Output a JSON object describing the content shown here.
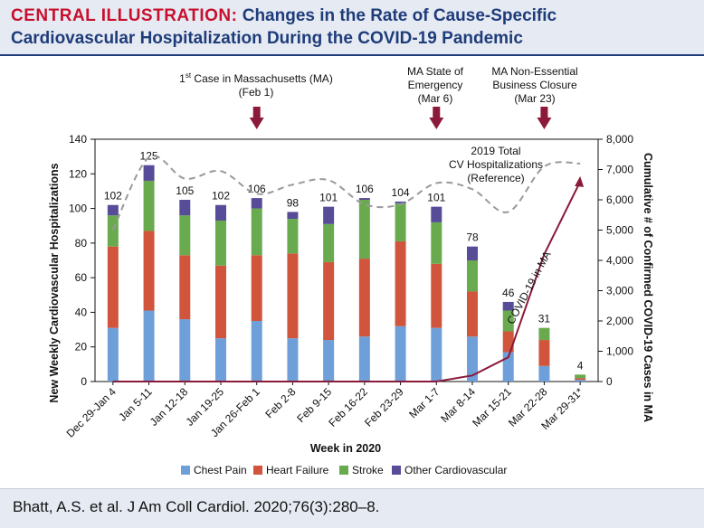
{
  "header": {
    "prefix": "CENTRAL ILLUSTRATION:",
    "title_line1": "Changes in the Rate of Cause-Specific",
    "title_line2": "Cardiovascular Hospitalization During the COVID-19 Pandemic"
  },
  "footer": {
    "citation": "Bhatt, A.S. et al. J Am Coll Cardiol. 2020;76(3):280–8."
  },
  "colors": {
    "chest_pain": "#6f9fd8",
    "heart_failure": "#d1553c",
    "stroke": "#6aaa4f",
    "other_cv": "#564c98",
    "covid_line": "#8b1a3a",
    "reference_line": "#999999",
    "event_arrow": "#8b1a3a",
    "title_accent": "#c8102e",
    "title_text": "#1f3c7a"
  },
  "chart_data": {
    "type": "bar",
    "stacked": true,
    "xlabel": "Week in 2020",
    "ylabel": "New Weekly Cardiovascular Hospitalizations",
    "ylabel_right": "Cumulative # of Confirmed COVID-19 Cases in MA",
    "ylim": [
      0,
      140
    ],
    "yticks": [
      0,
      20,
      40,
      60,
      80,
      100,
      120,
      140
    ],
    "ylim_right": [
      0,
      8000
    ],
    "yticks_right": [
      "0",
      "1,000",
      "2,000",
      "3,000",
      "4,000",
      "5,000",
      "6,000",
      "7,000",
      "8,000"
    ],
    "categories": [
      "Dec 29-Jan 4",
      "Jan 5-11",
      "Jan 12-18",
      "Jan 19-25",
      "Jan 26-Feb 1",
      "Feb 2-8",
      "Feb 9-15",
      "Feb 16-22",
      "Feb 23-29",
      "Mar 1-7",
      "Mar 8-14",
      "Mar 15-21",
      "Mar 22-28",
      "Mar 29-31*"
    ],
    "totals": [
      "102",
      "125",
      "105",
      "102",
      "106",
      "98",
      "101",
      "106",
      "104",
      "101",
      "78",
      "46",
      "31",
      "4"
    ],
    "series": [
      {
        "name": "Chest Pain",
        "values": [
          31,
          41,
          36,
          25,
          35,
          25,
          24,
          26,
          32,
          31,
          26,
          17,
          9,
          1
        ]
      },
      {
        "name": "Heart Failure",
        "values": [
          47,
          46,
          37,
          42,
          38,
          49,
          45,
          45,
          49,
          37,
          26,
          12,
          15,
          1
        ]
      },
      {
        "name": "Stroke",
        "values": [
          18,
          29,
          23,
          26,
          27,
          20,
          22,
          34,
          22,
          24,
          18,
          12,
          7,
          2
        ]
      },
      {
        "name": "Other Cardiovascular",
        "values": [
          6,
          9,
          9,
          9,
          6,
          4,
          10,
          1,
          1,
          9,
          8,
          5,
          0,
          0
        ]
      }
    ],
    "covid_cases": {
      "name": "COVID-19 in MA",
      "x_index": [
        0,
        1,
        2,
        3,
        4,
        5,
        6,
        7,
        8,
        9,
        10,
        11,
        12,
        13
      ],
      "values": [
        0,
        0,
        0,
        0,
        0,
        0,
        0,
        0,
        0,
        0,
        200,
        800,
        4200,
        6600
      ]
    },
    "reference_2019": {
      "label_line1": "2019 Total",
      "label_line2": "CV Hospitalizations",
      "label_line3": "(Reference)",
      "x_index": [
        0,
        1,
        2,
        3,
        4,
        5,
        6,
        7,
        8,
        9,
        10,
        11,
        12,
        13
      ],
      "values": [
        5000,
        7400,
        6700,
        6950,
        6200,
        6500,
        6650,
        5850,
        5850,
        6550,
        6350,
        5600,
        7100,
        7200
      ]
    },
    "events": [
      {
        "label_pre": "1",
        "label_sup": "st",
        "label_post": " Case in Massachusetts (MA)",
        "date": "(Feb 1)",
        "x_index": 4
      },
      {
        "label": "MA State of",
        "label2": "Emergency",
        "date": "(Mar 6)",
        "x_index": 9
      },
      {
        "label": "MA Non-Essential",
        "label2": "Business Closure",
        "date": "(Mar 23)",
        "x_index": 12
      }
    ],
    "legend": [
      "Chest Pain",
      "Heart Failure",
      "Stroke",
      "Other Cardiovascular"
    ]
  }
}
